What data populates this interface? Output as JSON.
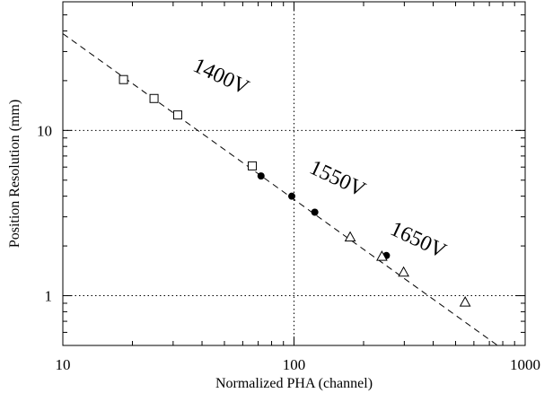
{
  "chart_data": {
    "type": "scatter",
    "title": "",
    "xlabel": "Normalized PHA (channel)",
    "ylabel": "Position Resolution (mm)",
    "xscale": "log",
    "yscale": "log",
    "xlim": [
      10,
      1000
    ],
    "ylim": [
      0.5,
      60
    ],
    "x_ticks": [
      {
        "value": 10,
        "label": "10"
      },
      {
        "value": 100,
        "label": "100"
      },
      {
        "value": 1000,
        "label": "1000"
      }
    ],
    "y_ticks": [
      {
        "value": 1,
        "label": "1"
      },
      {
        "value": 10,
        "label": "10"
      }
    ],
    "grid": "dotted at major decades",
    "series": [
      {
        "marker": "open-square",
        "points": [
          {
            "x": 18.3,
            "y": 20.3
          },
          {
            "x": 24.8,
            "y": 15.6
          },
          {
            "x": 31.4,
            "y": 12.4
          },
          {
            "x": 66.0,
            "y": 6.1
          }
        ]
      },
      {
        "marker": "filled-circle",
        "points": [
          {
            "x": 72.0,
            "y": 5.3
          },
          {
            "x": 97.8,
            "y": 4.0
          },
          {
            "x": 123.0,
            "y": 3.2
          },
          {
            "x": 251.0,
            "y": 1.75
          }
        ]
      },
      {
        "marker": "open-triangle",
        "points": [
          {
            "x": 175.0,
            "y": 2.25
          },
          {
            "x": 240.0,
            "y": 1.72
          },
          {
            "x": 298.0,
            "y": 1.38
          },
          {
            "x": 550.0,
            "y": 0.91
          }
        ]
      }
    ],
    "fit_line": {
      "style": "dashed",
      "points": [
        {
          "x": 10,
          "y": 38.5
        },
        {
          "x": 760,
          "y": 0.5
        }
      ]
    },
    "annotations": [
      {
        "text": "1400V",
        "x": 47,
        "y": 19.5,
        "rotate": 25
      },
      {
        "text": "1550V",
        "x": 150,
        "y": 4.7,
        "rotate": 25
      },
      {
        "text": "1650V",
        "x": 335,
        "y": 2.0,
        "rotate": 25
      }
    ]
  }
}
